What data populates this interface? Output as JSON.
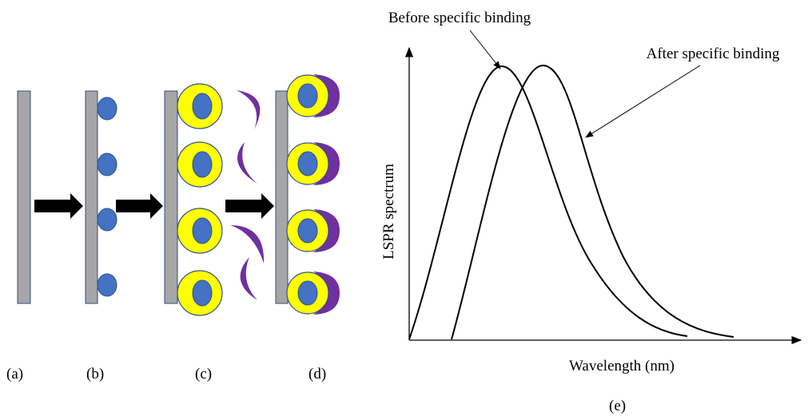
{
  "panels": {
    "a": "(a)",
    "b": "(b)",
    "c": "(c)",
    "d": "(d)",
    "e": "(e)"
  },
  "plot": {
    "y_label": "LSPR spectrum",
    "x_label": "Wavelength (nm)",
    "annotations": {
      "before": "Before specific binding",
      "after": "After specific binding"
    }
  }
}
